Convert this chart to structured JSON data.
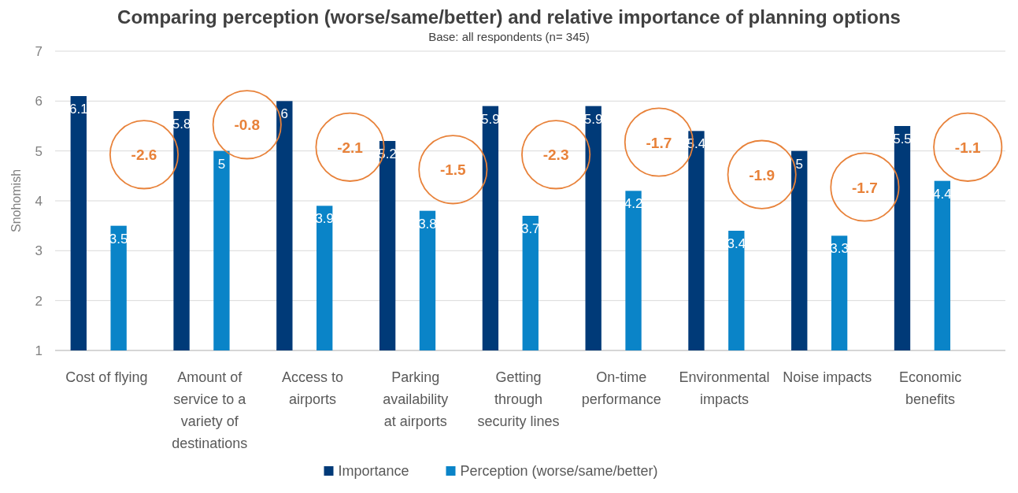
{
  "chart_data": {
    "type": "bar",
    "title": "Comparing perception (worse/same/better) and relative importance of planning options",
    "subtitle": "Base: all respondents (n= 345)",
    "ylabel": "Snohomish",
    "categories": [
      "Cost of flying",
      "Amount of service to a variety of destinations",
      "Access to airports",
      "Parking availability at airports",
      "Getting through security lines",
      "On-time performance",
      "Environmental impacts",
      "Noise impacts",
      "Economic benefits"
    ],
    "series": [
      {
        "name": "Importance",
        "color": "#003a78",
        "values": [
          6.1,
          5.8,
          6,
          5.2,
          5.9,
          5.9,
          5.4,
          5,
          5.5
        ]
      },
      {
        "name": "Perception (worse/same/better)",
        "color": "#0a84c8",
        "values": [
          3.5,
          5,
          3.9,
          3.8,
          3.7,
          4.2,
          3.4,
          3.3,
          4.4
        ]
      }
    ],
    "ylim": [
      1,
      7
    ],
    "yticks": [
      1,
      2,
      3,
      4,
      5,
      6,
      7
    ],
    "grid": "y",
    "legend": "bottom",
    "data_labels": true,
    "annotations": [
      "-2.6",
      "-0.8",
      "-2.1",
      "-1.5",
      "-2.3",
      "-1.7",
      "-1.9",
      "-1.7",
      "-1.1"
    ]
  }
}
